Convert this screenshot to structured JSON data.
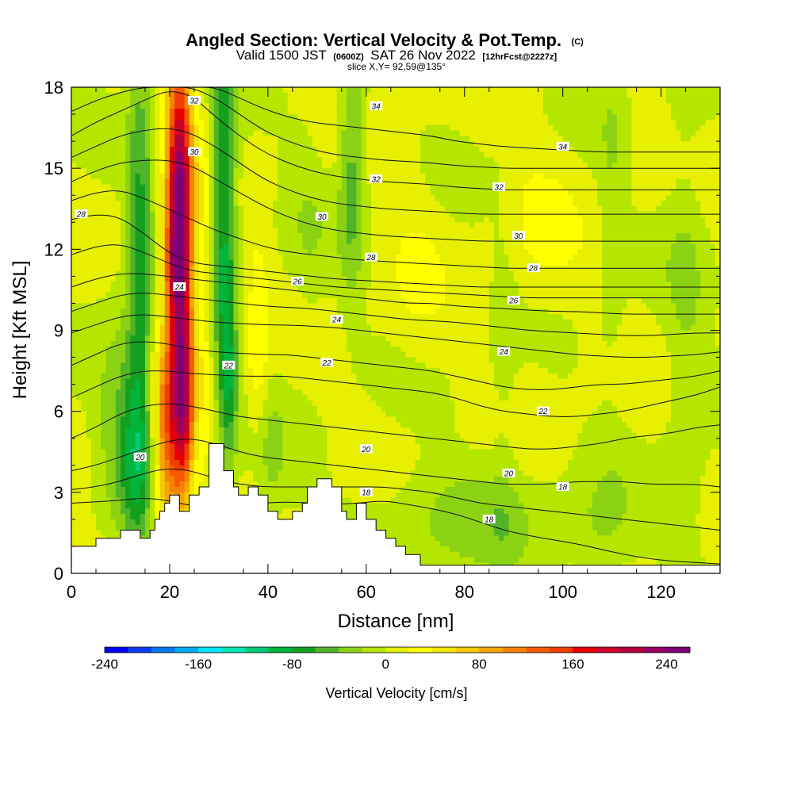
{
  "chart_data": {
    "type": "heatmap",
    "title": "Angled Section: Vertical Velocity & Pot.Temp.",
    "title_mark": "(C)",
    "subtitle": {
      "valid": "Valid 1500 JST",
      "utc": "(0600Z)",
      "date": "SAT 26 Nov 2022",
      "fcst": "[12hrFcst@2227z]"
    },
    "slice_label": "slice X,Y= 92,59@135°",
    "xlabel": "Distance [nm]",
    "ylabel": "Height [Kft MSL]",
    "xlim": [
      0,
      132
    ],
    "ylim": [
      0,
      18
    ],
    "x_ticks": [
      0,
      20,
      40,
      60,
      80,
      100,
      120
    ],
    "y_ticks": [
      0,
      3,
      6,
      9,
      12,
      15,
      18
    ],
    "colorbar": {
      "title": "Vertical Velocity [cm/s]",
      "min": -240,
      "max": 260,
      "step": 20,
      "tick_values": [
        -240,
        -160,
        -80,
        0,
        80,
        160,
        240
      ],
      "colors": [
        "#0000ff",
        "#0a3cf0",
        "#0a78f0",
        "#00aaf0",
        "#00e6ff",
        "#00e6b4",
        "#00cc78",
        "#00b43c",
        "#14a01e",
        "#50b428",
        "#8cd214",
        "#b4e600",
        "#e6f000",
        "#ffff00",
        "#f0e600",
        "#f5c800",
        "#f5a500",
        "#f58200",
        "#f55a00",
        "#f03c00",
        "#e60000",
        "#cc0028",
        "#b4003c",
        "#960064",
        "#7d0078"
      ]
    },
    "terrain": [
      [
        0,
        1.0
      ],
      [
        5,
        1.0
      ],
      [
        5,
        1.3
      ],
      [
        10,
        1.3
      ],
      [
        10,
        1.6
      ],
      [
        14,
        1.6
      ],
      [
        14,
        1.3
      ],
      [
        16,
        1.3
      ],
      [
        16,
        1.6
      ],
      [
        17,
        1.6
      ],
      [
        17,
        2.0
      ],
      [
        18,
        2.0
      ],
      [
        18,
        2.3
      ],
      [
        19,
        2.3
      ],
      [
        19,
        2.6
      ],
      [
        20,
        2.6
      ],
      [
        20,
        2.9
      ],
      [
        22,
        2.9
      ],
      [
        22,
        2.3
      ],
      [
        24,
        2.3
      ],
      [
        24,
        2.9
      ],
      [
        26,
        2.9
      ],
      [
        26,
        3.2
      ],
      [
        28,
        3.2
      ],
      [
        28,
        4.8
      ],
      [
        31,
        4.8
      ],
      [
        31,
        3.8
      ],
      [
        33,
        3.8
      ],
      [
        33,
        3.2
      ],
      [
        34,
        3.2
      ],
      [
        34,
        2.9
      ],
      [
        36,
        2.9
      ],
      [
        36,
        3.2
      ],
      [
        38,
        3.2
      ],
      [
        38,
        2.9
      ],
      [
        40,
        2.9
      ],
      [
        40,
        2.3
      ],
      [
        42,
        2.3
      ],
      [
        42,
        2.0
      ],
      [
        45,
        2.0
      ],
      [
        45,
        2.3
      ],
      [
        47,
        2.3
      ],
      [
        47,
        2.6
      ],
      [
        48,
        2.6
      ],
      [
        48,
        3.2
      ],
      [
        50,
        3.2
      ],
      [
        50,
        3.5
      ],
      [
        53,
        3.5
      ],
      [
        53,
        3.2
      ],
      [
        55,
        3.2
      ],
      [
        55,
        2.3
      ],
      [
        56,
        2.3
      ],
      [
        56,
        2.0
      ],
      [
        58,
        2.0
      ],
      [
        58,
        2.6
      ],
      [
        60,
        2.6
      ],
      [
        60,
        2.0
      ],
      [
        62,
        2.0
      ],
      [
        62,
        1.6
      ],
      [
        64,
        1.6
      ],
      [
        64,
        1.3
      ],
      [
        66,
        1.3
      ],
      [
        66,
        1.0
      ],
      [
        68,
        1.0
      ],
      [
        68,
        0.7
      ],
      [
        71,
        0.7
      ],
      [
        71,
        0.3
      ],
      [
        132,
        0.3
      ],
      [
        132,
        0
      ],
      [
        0,
        0
      ]
    ],
    "velocity_features": [
      {
        "x": 22,
        "y": 13.5,
        "sx": 1.8,
        "sy": 4.0,
        "value": 250
      },
      {
        "x": 21,
        "y": 11.5,
        "sx": 1.6,
        "sy": 1.2,
        "value": 60
      },
      {
        "x": 20,
        "y": 5.0,
        "sx": 2.2,
        "sy": 3.0,
        "value": 120
      },
      {
        "x": 23,
        "y": 6.5,
        "sx": 1.4,
        "sy": 2.5,
        "value": 140
      },
      {
        "x": 14,
        "y": 11.5,
        "sx": 1.8,
        "sy": 6.0,
        "value": -70
      },
      {
        "x": 13,
        "y": 4.5,
        "sx": 2.5,
        "sy": 2.5,
        "value": -60
      },
      {
        "x": 9,
        "y": 6.0,
        "sx": 3.0,
        "sy": 3.0,
        "value": -30
      },
      {
        "x": 31,
        "y": 13.5,
        "sx": 1.8,
        "sy": 5.0,
        "value": -90
      },
      {
        "x": 32,
        "y": 7.0,
        "sx": 1.3,
        "sy": 2.0,
        "value": -60
      },
      {
        "x": 57,
        "y": 15.5,
        "sx": 1.8,
        "sy": 3.5,
        "value": -55
      },
      {
        "x": 38,
        "y": 8.0,
        "sx": 1.5,
        "sy": 3.0,
        "value": 35
      },
      {
        "x": 40,
        "y": 4.5,
        "sx": 2.5,
        "sy": 2.0,
        "value": -25
      },
      {
        "x": 78,
        "y": 2.0,
        "sx": 14.0,
        "sy": 1.5,
        "value": -30
      },
      {
        "x": 108,
        "y": 1.5,
        "sx": 5.0,
        "sy": 1.5,
        "value": -25
      },
      {
        "x": 125,
        "y": 9.0,
        "sx": 3.0,
        "sy": 8.0,
        "value": -22
      },
      {
        "x": 110,
        "y": 14.0,
        "sx": 2.0,
        "sy": 5.0,
        "value": -20
      },
      {
        "x": 95,
        "y": 12.5,
        "sx": 6.0,
        "sy": 2.5,
        "value": 15
      },
      {
        "x": 70,
        "y": 11.0,
        "sx": 4.0,
        "sy": 3.0,
        "value": 12
      },
      {
        "x": 27,
        "y": 10.0,
        "sx": 1.4,
        "sy": 5.0,
        "value": 30
      },
      {
        "x": 48,
        "y": 13.0,
        "sx": 3.0,
        "sy": 4.0,
        "value": -15
      },
      {
        "x": 88,
        "y": 7.0,
        "sx": 2.0,
        "sy": 6.0,
        "value": -15
      }
    ],
    "isentropes": [
      {
        "value": 18,
        "z": [
          2.6,
          2.65,
          2.7,
          2.8,
          2.7,
          2.5,
          2.45,
          2.55,
          2.6,
          2.65,
          2.6,
          2.55,
          2.6,
          2.7,
          2.55,
          2.4,
          2.2,
          1.9,
          1.6,
          1.4,
          1.25,
          1.1,
          0.9,
          0.7,
          0.55,
          0.45,
          0.4,
          0.35
        ],
        "labels": [
          [
            60,
            3.0
          ],
          [
            85,
            2.0
          ],
          [
            100,
            3.2
          ]
        ]
      },
      {
        "value": 20,
        "z": [
          3.8,
          4.0,
          4.3,
          4.6,
          4.9,
          5.0,
          4.8,
          4.5,
          4.3,
          4.2,
          4.1,
          4.0,
          3.9,
          3.8,
          3.7,
          3.6,
          3.5,
          3.4,
          3.3,
          3.3,
          3.3,
          3.4,
          3.4,
          3.4,
          3.3,
          3.3,
          3.3,
          3.2
        ],
        "labels": [
          [
            14,
            4.3
          ],
          [
            60,
            4.6
          ],
          [
            89,
            3.7
          ]
        ]
      },
      {
        "value": 22,
        "z": [
          6.5,
          6.9,
          7.3,
          7.5,
          7.5,
          7.4,
          7.35,
          7.3,
          7.3,
          7.3,
          7.2,
          7.1,
          7.0,
          6.9,
          6.8,
          6.7,
          6.5,
          6.2,
          6.0,
          5.9,
          5.8,
          5.8,
          5.9,
          6.0,
          6.2,
          6.4,
          6.6,
          6.9
        ],
        "labels": [
          [
            32,
            7.7
          ],
          [
            52,
            7.8
          ],
          [
            96,
            6.0
          ]
        ]
      },
      {
        "value": 24,
        "z": [
          8.9,
          9.2,
          9.5,
          9.6,
          9.5,
          9.4,
          9.3,
          9.25,
          9.2,
          9.2,
          9.15,
          9.1,
          9.0,
          8.9,
          8.8,
          8.7,
          8.6,
          8.5,
          8.4,
          8.3,
          8.2,
          8.1,
          8.05,
          8.0,
          8.0,
          8.05,
          8.1,
          8.2
        ],
        "labels": [
          [
            22,
            10.6
          ],
          [
            54,
            9.4
          ],
          [
            88,
            8.2
          ]
        ]
      },
      {
        "value": 26,
        "z": [
          10.6,
          10.9,
          11.1,
          11.1,
          11.0,
          10.9,
          10.8,
          10.7,
          10.6,
          10.5,
          10.4,
          10.3,
          10.2,
          10.1,
          10.0,
          10.0,
          9.9,
          9.85,
          9.8,
          9.75,
          9.7,
          9.7,
          9.65,
          9.6,
          9.6,
          9.6,
          9.6,
          9.6
        ],
        "labels": [
          [
            46,
            10.8
          ],
          [
            90,
            10.1
          ]
        ]
      },
      {
        "value": 28,
        "z": [
          13.1,
          13.3,
          13.2,
          12.6,
          11.9,
          11.5,
          11.4,
          11.3,
          11.2,
          11.1,
          11.0,
          10.9,
          10.85,
          10.8,
          10.75,
          10.7,
          10.65,
          10.6,
          10.6,
          10.6,
          10.6,
          10.6,
          10.6,
          10.6,
          10.6,
          10.6,
          10.6,
          10.6
        ],
        "labels": [
          [
            2,
            13.3
          ],
          [
            61,
            11.7
          ],
          [
            94,
            11.3
          ]
        ]
      },
      {
        "value": 30,
        "z": [
          14.5,
          14.9,
          15.2,
          15.3,
          15.3,
          15.1,
          14.6,
          14.1,
          13.6,
          13.2,
          12.9,
          12.7,
          12.6,
          12.5,
          12.45,
          12.4,
          12.35,
          12.3,
          12.3,
          12.3,
          12.3,
          12.3,
          12.3,
          12.3,
          12.3,
          12.3,
          12.3,
          12.3
        ],
        "labels": [
          [
            25,
            15.6
          ],
          [
            51,
            13.2
          ],
          [
            91,
            12.5
          ]
        ]
      },
      {
        "value": 32,
        "z": [
          16.2,
          16.7,
          17.1,
          17.5,
          17.9,
          17.7,
          16.9,
          16.2,
          15.6,
          15.2,
          14.9,
          14.7,
          14.6,
          14.5,
          14.45,
          14.4,
          14.3,
          14.25,
          14.2,
          14.2,
          14.2,
          14.2,
          14.2,
          14.2,
          14.2,
          14.2,
          14.2,
          14.2
        ],
        "labels": [
          [
            25,
            17.5
          ],
          [
            62,
            14.6
          ],
          [
            87,
            14.3
          ]
        ]
      },
      {
        "value": 34,
        "z": [
          18.0,
          18.0,
          18.0,
          18.0,
          18.0,
          18.0,
          18.0,
          17.6,
          17.2,
          16.9,
          16.7,
          16.6,
          16.5,
          16.4,
          16.3,
          16.2,
          16.0,
          15.9,
          15.8,
          15.75,
          15.7,
          15.65,
          15.6,
          15.6,
          15.6,
          15.6,
          15.6,
          15.6
        ],
        "labels": [
          [
            62,
            17.3
          ],
          [
            100,
            15.8
          ]
        ]
      },
      {
        "value": 19,
        "z": [
          3.1,
          3.2,
          3.4,
          3.7,
          3.9,
          3.8,
          3.5,
          3.3,
          3.2,
          3.2,
          3.2,
          3.2,
          3.2,
          3.2,
          3.1,
          3.0,
          2.8,
          2.6,
          2.5,
          2.4,
          2.3,
          2.2,
          2.1,
          2.0,
          1.9,
          1.8,
          1.7,
          1.6
        ],
        "labels": []
      },
      {
        "value": 21,
        "z": [
          5.0,
          5.4,
          5.9,
          6.2,
          6.3,
          6.2,
          6.0,
          5.8,
          5.7,
          5.6,
          5.5,
          5.4,
          5.3,
          5.2,
          5.1,
          5.0,
          4.9,
          4.8,
          4.7,
          4.6,
          4.6,
          4.7,
          4.8,
          5.0,
          5.1,
          5.2,
          5.4,
          5.5
        ],
        "labels": []
      },
      {
        "value": 23,
        "z": [
          7.7,
          8.1,
          8.5,
          8.6,
          8.5,
          8.3,
          8.2,
          8.15,
          8.1,
          8.1,
          8.0,
          7.9,
          7.8,
          7.7,
          7.6,
          7.5,
          7.3,
          7.1,
          6.9,
          6.8,
          6.8,
          6.9,
          7.0,
          7.0,
          7.1,
          7.2,
          7.3,
          7.5
        ],
        "labels": []
      },
      {
        "value": 25,
        "z": [
          9.7,
          10.0,
          10.3,
          10.4,
          10.3,
          10.2,
          10.1,
          10.0,
          9.9,
          9.85,
          9.8,
          9.7,
          9.6,
          9.5,
          9.4,
          9.35,
          9.3,
          9.2,
          9.1,
          9.0,
          8.95,
          8.9,
          8.85,
          8.8,
          8.8,
          8.85,
          8.9,
          8.9
        ],
        "labels": []
      },
      {
        "value": 27,
        "z": [
          11.8,
          12.1,
          12.2,
          11.9,
          11.5,
          11.2,
          11.1,
          11.0,
          10.9,
          10.8,
          10.7,
          10.6,
          10.55,
          10.5,
          10.45,
          10.4,
          10.35,
          10.3,
          10.25,
          10.2,
          10.2,
          10.2,
          10.2,
          10.2,
          10.2,
          10.2,
          10.2,
          10.2
        ],
        "labels": []
      },
      {
        "value": 29,
        "z": [
          13.8,
          14.1,
          14.2,
          13.9,
          13.5,
          13.1,
          12.7,
          12.4,
          12.1,
          11.9,
          11.8,
          11.7,
          11.6,
          11.55,
          11.5,
          11.45,
          11.4,
          11.35,
          11.3,
          11.3,
          11.3,
          11.3,
          11.3,
          11.3,
          11.3,
          11.3,
          11.3,
          11.3
        ],
        "labels": []
      },
      {
        "value": 31,
        "z": [
          15.4,
          15.8,
          16.2,
          16.4,
          16.5,
          16.3,
          15.8,
          15.2,
          14.6,
          14.2,
          13.9,
          13.7,
          13.6,
          13.5,
          13.45,
          13.4,
          13.35,
          13.3,
          13.3,
          13.3,
          13.3,
          13.3,
          13.3,
          13.3,
          13.3,
          13.3,
          13.3,
          13.3
        ],
        "labels": []
      },
      {
        "value": 33,
        "z": [
          17.1,
          17.5,
          17.8,
          18.0,
          18.0,
          18.0,
          17.6,
          17.0,
          16.4,
          16.0,
          15.7,
          15.5,
          15.4,
          15.3,
          15.25,
          15.2,
          15.1,
          15.05,
          15.0,
          15.0,
          15.0,
          15.0,
          15.0,
          15.0,
          15.0,
          15.0,
          15.0,
          15.0
        ],
        "labels": []
      }
    ]
  }
}
